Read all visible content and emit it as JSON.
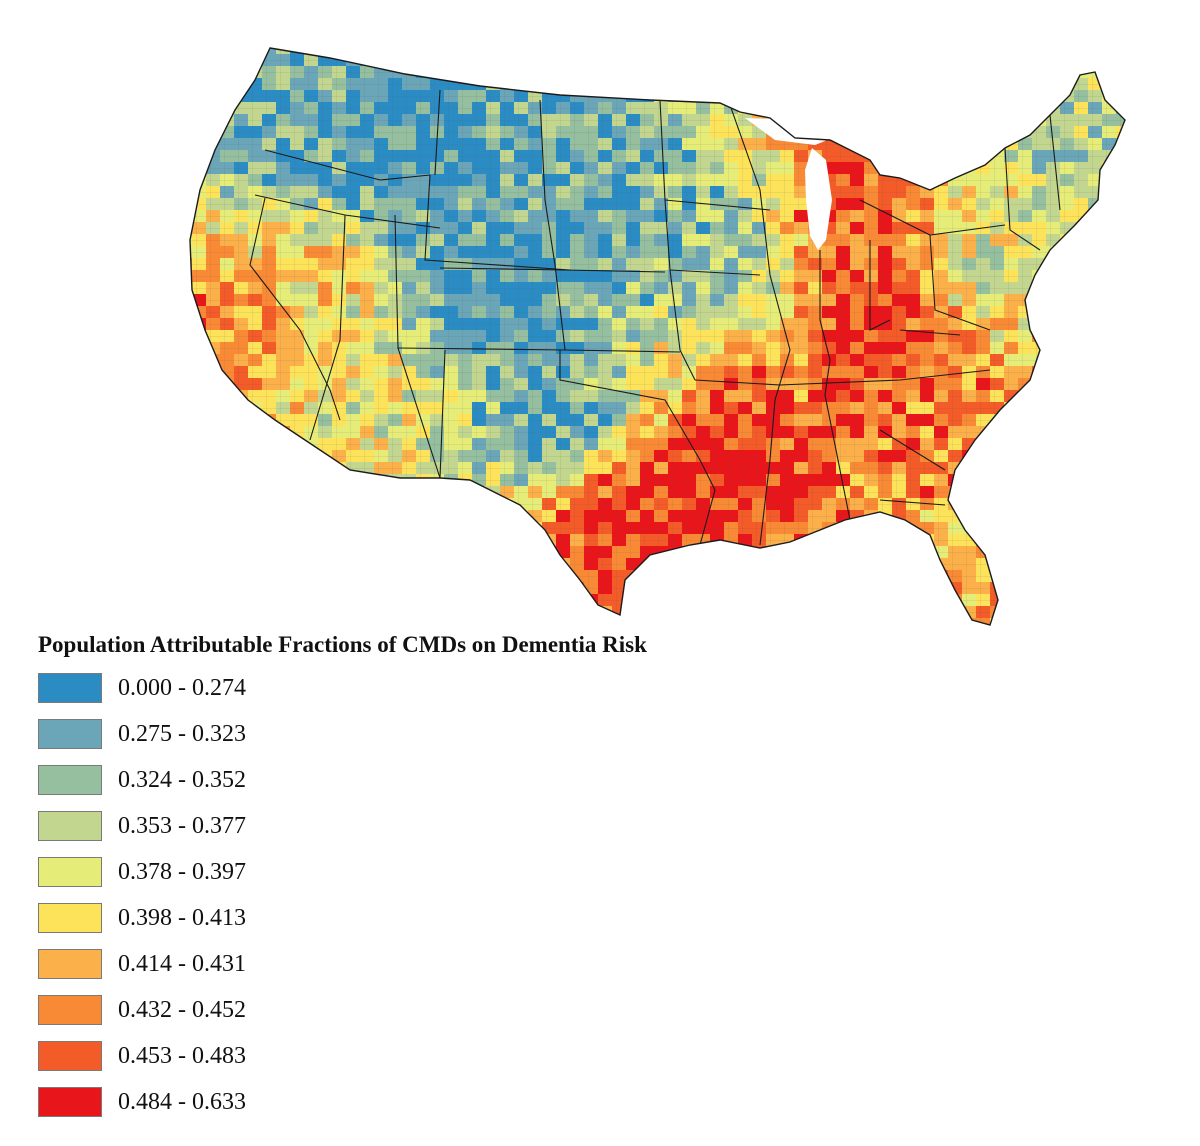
{
  "legend": {
    "title": "Population Attributable Fractions of CMDs on Dementia Risk",
    "classes": [
      {
        "label": "0.000 - 0.274",
        "color": "#2b8cc4"
      },
      {
        "label": "0.275 - 0.323",
        "color": "#6aa6b8"
      },
      {
        "label": "0.324 - 0.352",
        "color": "#95bf9e"
      },
      {
        "label": "0.353 - 0.377",
        "color": "#c2d68f"
      },
      {
        "label": "0.378 - 0.397",
        "color": "#e6ec78"
      },
      {
        "label": "0.398 - 0.413",
        "color": "#fde35a"
      },
      {
        "label": "0.414 - 0.431",
        "color": "#fcb04a"
      },
      {
        "label": "0.432 - 0.452",
        "color": "#f98a35"
      },
      {
        "label": "0.453 - 0.483",
        "color": "#f35b28"
      },
      {
        "label": "0.484 - 0.633",
        "color": "#e8161a"
      }
    ]
  },
  "regional_class_index": {
    "pacific_northwest": 1,
    "northern_rockies": 0,
    "california_coast": 7,
    "nevada": 5,
    "southwest_desert": 4,
    "central_rockies": 0,
    "southern_plains": 1,
    "northern_plains": 1,
    "midwest": 2,
    "michigan": 8,
    "ohio_valley": 9,
    "texas_gulf": 9,
    "lower_mississippi": 9,
    "southeast": 7,
    "florida": 6,
    "northeast": 4,
    "new_england": 3
  }
}
